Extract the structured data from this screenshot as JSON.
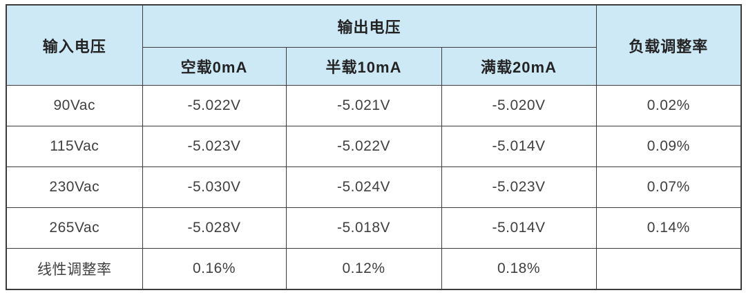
{
  "table": {
    "header": {
      "input_voltage": "输入电压",
      "output_voltage": "输出电压",
      "load_regulation": "负载调整率",
      "load_conditions": [
        "空载0mA",
        "半载10mA",
        "满载20mA"
      ]
    },
    "rows": [
      [
        "90Vac",
        "-5.022V",
        "-5.021V",
        "-5.020V",
        "0.02%"
      ],
      [
        "115Vac",
        "-5.023V",
        "-5.022V",
        "-5.014V",
        "0.09%"
      ],
      [
        "230Vac",
        "-5.030V",
        "-5.024V",
        "-5.023V",
        "0.07%"
      ],
      [
        "265Vac",
        "-5.028V",
        "-5.018V",
        "-5.014V",
        "0.14%"
      ],
      [
        "线性调整率",
        "0.16%",
        "0.12%",
        "0.18%",
        ""
      ]
    ],
    "colors": {
      "header_background": "#cde9f6",
      "border": "#3b3b3b",
      "body_text": "#3f3f3f",
      "page_background": "#ffffff"
    }
  }
}
